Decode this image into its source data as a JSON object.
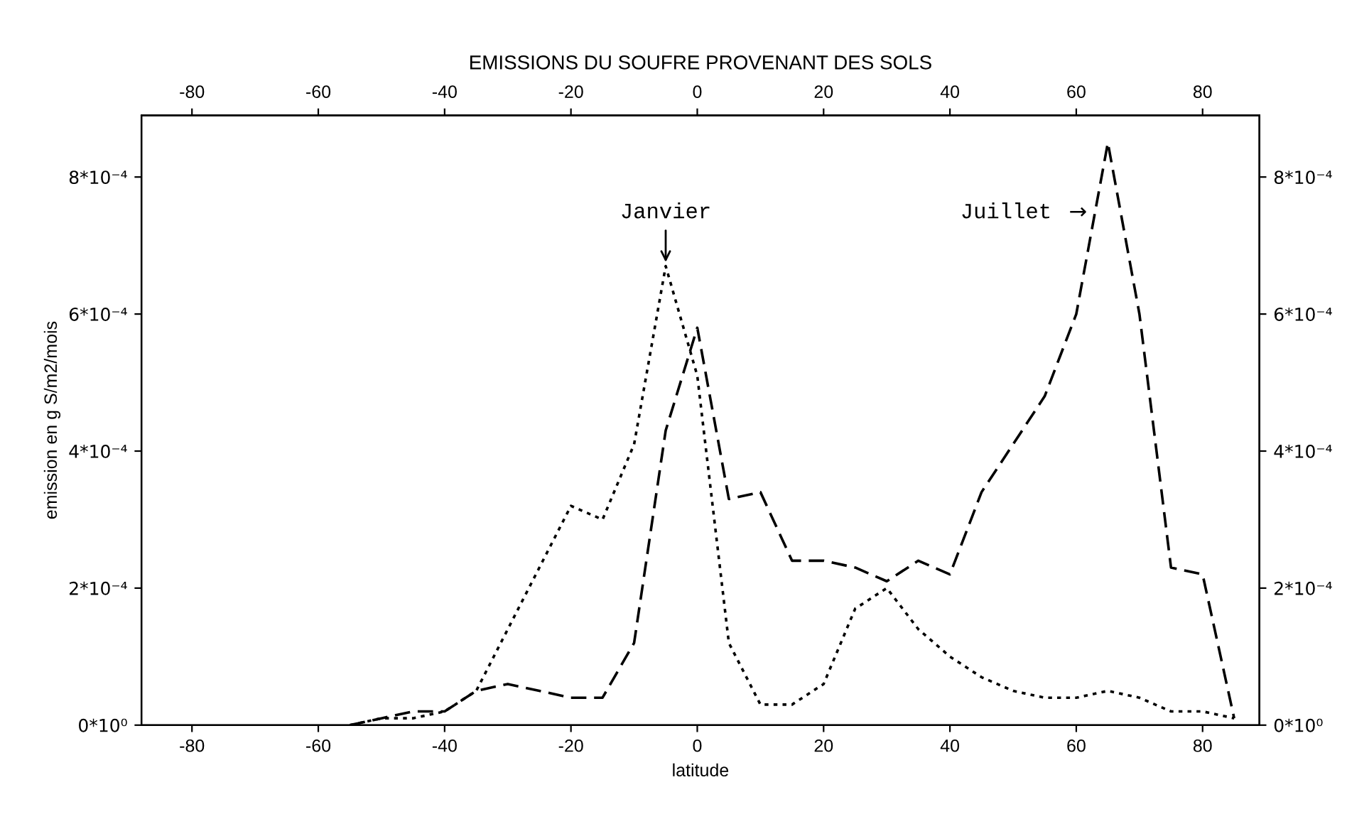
{
  "chart_data": {
    "type": "line",
    "title": "EMISSIONS DU SOUFRE PROVENANT DES SOLS",
    "xlabel": "latitude",
    "ylabel": "emission en g S/m2/mois",
    "x": [
      -55,
      -50,
      -45,
      -40,
      -35,
      -30,
      -20,
      -15,
      -10,
      -5,
      0,
      5,
      10,
      15,
      20,
      25,
      30,
      35,
      40,
      45,
      50,
      55,
      60,
      65,
      70,
      75,
      80,
      85
    ],
    "series": [
      {
        "name": "Janvier",
        "color": "#000000",
        "line_style": "dotted",
        "values": [
          0.0,
          1e-05,
          1e-05,
          2e-05,
          5e-05,
          0.00014,
          0.00032,
          0.0003,
          0.00041,
          0.00067,
          0.00051,
          0.00012,
          3e-05,
          3e-05,
          6e-05,
          0.00017,
          0.0002,
          0.00014,
          0.0001,
          7e-05,
          5e-05,
          4e-05,
          4e-05,
          5e-05,
          4e-05,
          2e-05,
          2e-05,
          1e-05
        ]
      },
      {
        "name": "Juillet",
        "color": "#000000",
        "line_style": "dashed",
        "values": [
          0.0,
          1e-05,
          2e-05,
          2e-05,
          5e-05,
          6e-05,
          4e-05,
          4e-05,
          0.00012,
          0.00043,
          0.00058,
          0.00033,
          0.00034,
          0.00024,
          0.00024,
          0.00023,
          0.00021,
          0.00024,
          0.00022,
          0.00034,
          0.00041,
          0.00048,
          0.0006,
          0.00085,
          0.0006,
          0.00023,
          0.00022,
          1e-05
        ]
      }
    ],
    "xlim": [
      -88,
      89
    ],
    "xticks": [
      -80,
      -60,
      -40,
      -20,
      0,
      20,
      40,
      60,
      80
    ],
    "x2lim": [
      -88,
      89
    ],
    "x2ticks": [
      -80,
      -60,
      -40,
      -20,
      0,
      20,
      40,
      60,
      80
    ],
    "ylim": [
      0,
      0.00089
    ],
    "yticks": [
      {
        "value": 0,
        "label": "0*10⁰"
      },
      {
        "value": 0.0002,
        "label": "2*10⁻⁴"
      },
      {
        "value": 0.0004,
        "label": "4*10⁻⁴"
      },
      {
        "value": 0.0006,
        "label": "6*10⁻⁴"
      },
      {
        "value": 0.0008,
        "label": "8*10⁻⁴"
      }
    ],
    "y2lim": [
      0,
      0.00089
    ],
    "y2ticks": [
      {
        "value": 0,
        "label": "0*10⁰"
      },
      {
        "value": 0.0002,
        "label": "2*10⁻⁴"
      },
      {
        "value": 0.0004,
        "label": "4*10⁻⁴"
      },
      {
        "value": 0.0006,
        "label": "6*10⁻⁴"
      },
      {
        "value": 0.0008,
        "label": "8*10⁻⁴"
      }
    ],
    "annotations": [
      "→"
    ],
    "grid": false,
    "legend": false
  }
}
